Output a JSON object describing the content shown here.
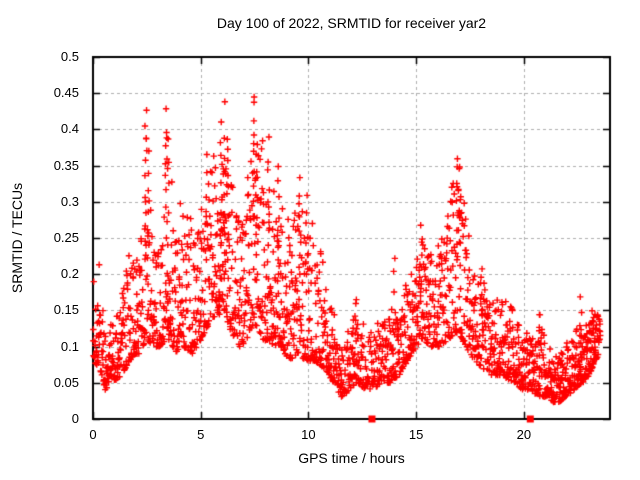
{
  "chart_data": {
    "type": "scatter",
    "title": "Day 100 of 2022, SRMTID for receiver yar2",
    "xlabel": "GPS time / hours",
    "ylabel": "SRMTID / TECUs",
    "xlim": [
      0,
      24
    ],
    "ylim": [
      0,
      0.5
    ],
    "xticks": {
      "values": [
        0,
        5,
        10,
        15,
        20
      ],
      "labels": [
        "0",
        "5",
        "10",
        "15",
        "20"
      ]
    },
    "yticks": {
      "values": [
        0,
        0.05,
        0.1,
        0.15,
        0.2,
        0.25,
        0.3,
        0.35,
        0.4,
        0.45,
        0.5
      ],
      "labels": [
        "0",
        "0.05",
        "0.1",
        "0.15",
        "0.2",
        "0.25",
        "0.3",
        "0.35",
        "0.4",
        "0.45",
        "0.5"
      ]
    },
    "grid": true,
    "legend": "none",
    "colors": {
      "marker": "#ff0000",
      "grid": "#b0b0b0",
      "border": "#000000",
      "background": "#ffffff"
    },
    "series": [
      {
        "name": "srmtid-scatter",
        "marker": "plus",
        "t_start": 0.0,
        "t_end": 23.55,
        "step_hours": 0.033333,
        "envelope_comment": "piecewise-linear envelope read from plot: [hour, y_min, y_max, points_per_step]",
        "envelope": [
          [
            0.0,
            0.08,
            0.2,
            3
          ],
          [
            0.3,
            0.07,
            0.22,
            3
          ],
          [
            0.55,
            0.04,
            0.13,
            3
          ],
          [
            0.9,
            0.05,
            0.13,
            3
          ],
          [
            1.3,
            0.06,
            0.16,
            3
          ],
          [
            1.7,
            0.08,
            0.25,
            3
          ],
          [
            2.1,
            0.09,
            0.22,
            3
          ],
          [
            2.45,
            0.11,
            0.38,
            3
          ],
          [
            2.8,
            0.1,
            0.24,
            3
          ],
          [
            3.1,
            0.1,
            0.28,
            3
          ],
          [
            3.45,
            0.11,
            0.4,
            3
          ],
          [
            3.8,
            0.09,
            0.27,
            3
          ],
          [
            4.2,
            0.1,
            0.31,
            3
          ],
          [
            4.6,
            0.09,
            0.28,
            3
          ],
          [
            5.0,
            0.11,
            0.3,
            3
          ],
          [
            5.35,
            0.13,
            0.35,
            3
          ],
          [
            5.7,
            0.14,
            0.37,
            3
          ],
          [
            6.05,
            0.15,
            0.4,
            4
          ],
          [
            6.4,
            0.12,
            0.36,
            3
          ],
          [
            6.8,
            0.1,
            0.3,
            3
          ],
          [
            7.2,
            0.11,
            0.33,
            3
          ],
          [
            7.5,
            0.13,
            0.42,
            3
          ],
          [
            7.9,
            0.11,
            0.37,
            3
          ],
          [
            8.3,
            0.1,
            0.32,
            3
          ],
          [
            8.7,
            0.1,
            0.31,
            3
          ],
          [
            9.1,
            0.08,
            0.26,
            3
          ],
          [
            9.5,
            0.09,
            0.31,
            3
          ],
          [
            9.9,
            0.08,
            0.29,
            3
          ],
          [
            10.3,
            0.08,
            0.26,
            3
          ],
          [
            10.7,
            0.07,
            0.21,
            3
          ],
          [
            11.1,
            0.05,
            0.16,
            3
          ],
          [
            11.5,
            0.03,
            0.11,
            3
          ],
          [
            11.9,
            0.04,
            0.12,
            3
          ],
          [
            12.2,
            0.05,
            0.16,
            3
          ],
          [
            12.6,
            0.04,
            0.12,
            2.5
          ],
          [
            13.0,
            0.04,
            0.12,
            2.5
          ],
          [
            13.4,
            0.05,
            0.15,
            2.5
          ],
          [
            13.8,
            0.05,
            0.15,
            3
          ],
          [
            14.2,
            0.06,
            0.17,
            3
          ],
          [
            14.6,
            0.08,
            0.2,
            3
          ],
          [
            15.0,
            0.1,
            0.25,
            3
          ],
          [
            15.3,
            0.11,
            0.27,
            3
          ],
          [
            15.7,
            0.1,
            0.22,
            3
          ],
          [
            16.1,
            0.1,
            0.25,
            3
          ],
          [
            16.5,
            0.11,
            0.3,
            3
          ],
          [
            16.9,
            0.12,
            0.36,
            3
          ],
          [
            17.3,
            0.1,
            0.3,
            3
          ],
          [
            17.7,
            0.08,
            0.21,
            3
          ],
          [
            18.1,
            0.07,
            0.2,
            3
          ],
          [
            18.5,
            0.06,
            0.17,
            3
          ],
          [
            19.0,
            0.06,
            0.17,
            3
          ],
          [
            19.5,
            0.05,
            0.16,
            3
          ],
          [
            19.9,
            0.04,
            0.13,
            3
          ],
          [
            20.3,
            0.04,
            0.12,
            3
          ],
          [
            20.7,
            0.03,
            0.15,
            3
          ],
          [
            21.1,
            0.03,
            0.1,
            3
          ],
          [
            21.5,
            0.02,
            0.09,
            3.5
          ],
          [
            21.9,
            0.03,
            0.1,
            3.5
          ],
          [
            22.3,
            0.04,
            0.12,
            3.5
          ],
          [
            22.7,
            0.05,
            0.14,
            4
          ],
          [
            23.0,
            0.06,
            0.14,
            4
          ],
          [
            23.3,
            0.08,
            0.15,
            4
          ],
          [
            23.5,
            0.09,
            0.14,
            3
          ]
        ],
        "streaks_comment": "tall vertical bursts read from plot: [hour, y_min, y_max, n_points]",
        "streaks": [
          [
            2.45,
            0.24,
            0.43,
            9
          ],
          [
            2.55,
            0.15,
            0.37,
            7
          ],
          [
            3.4,
            0.25,
            0.425,
            9
          ],
          [
            3.5,
            0.16,
            0.4,
            7
          ],
          [
            5.3,
            0.22,
            0.37,
            6
          ],
          [
            5.95,
            0.24,
            0.415,
            9
          ],
          [
            6.1,
            0.2,
            0.43,
            9
          ],
          [
            6.25,
            0.22,
            0.4,
            7
          ],
          [
            7.45,
            0.28,
            0.457,
            9
          ],
          [
            7.6,
            0.2,
            0.36,
            7
          ],
          [
            8.15,
            0.24,
            0.385,
            8
          ],
          [
            8.6,
            0.2,
            0.345,
            8
          ],
          [
            9.6,
            0.2,
            0.33,
            6
          ],
          [
            9.95,
            0.2,
            0.31,
            5
          ],
          [
            12.2,
            0.09,
            0.165,
            5
          ],
          [
            14.0,
            0.12,
            0.23,
            5
          ],
          [
            15.25,
            0.17,
            0.27,
            6
          ],
          [
            16.9,
            0.22,
            0.37,
            8
          ],
          [
            17.05,
            0.18,
            0.345,
            6
          ],
          [
            18.05,
            0.1,
            0.2,
            5
          ],
          [
            20.75,
            0.07,
            0.145,
            5
          ],
          [
            22.65,
            0.06,
            0.17,
            6
          ],
          [
            23.2,
            0.08,
            0.155,
            5
          ]
        ],
        "y_peak": 0.457,
        "y_peak_hour": 7.45
      },
      {
        "name": "axis-flag-squares",
        "marker": "filled-square",
        "points": [
          [
            12.95,
            0
          ],
          [
            20.3,
            0
          ]
        ]
      }
    ]
  }
}
